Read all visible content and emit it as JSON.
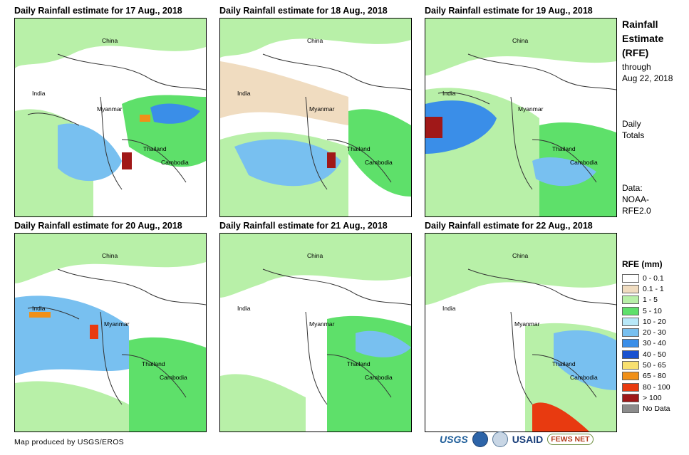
{
  "panels": [
    {
      "title": "Daily Rainfall estimate for 17 Aug., 2018"
    },
    {
      "title": "Daily Rainfall estimate for 18 Aug., 2018"
    },
    {
      "title": "Daily Rainfall estimate for 19 Aug., 2018"
    },
    {
      "title": "Daily Rainfall estimate for 20 Aug., 2018"
    },
    {
      "title": "Daily Rainfall estimate for 21 Aug., 2018"
    },
    {
      "title": "Daily Rainfall estimate for 22 Aug., 2018"
    }
  ],
  "places": {
    "china": "China",
    "india": "India",
    "myanmar": "Myanmar",
    "thailand": "Thailand",
    "cambodia": "Cambodia"
  },
  "side": {
    "title1": "Rainfall",
    "title2": "Estimate",
    "title3": "(RFE)",
    "through": "through",
    "date": "Aug 22, 2018",
    "daily": "Daily",
    "totals": "Totals",
    "data_label": "Data:",
    "data_source1": "NOAA-",
    "data_source2": "RFE2.0"
  },
  "legend": {
    "title": "RFE (mm)",
    "items": [
      {
        "label": "0 - 0.1",
        "color": "#ffffff"
      },
      {
        "label": "0.1 - 1",
        "color": "#f0dcc0"
      },
      {
        "label": "1 - 5",
        "color": "#b8f0a8"
      },
      {
        "label": "5 - 10",
        "color": "#5ee06a"
      },
      {
        "label": "10 - 20",
        "color": "#b8e8f8"
      },
      {
        "label": "20 - 30",
        "color": "#78c0f0"
      },
      {
        "label": "30 - 40",
        "color": "#3a8ee8"
      },
      {
        "label": "40 - 50",
        "color": "#1a52d0"
      },
      {
        "label": "50 - 65",
        "color": "#f8e070"
      },
      {
        "label": "65 - 80",
        "color": "#f09018"
      },
      {
        "label": "80 - 100",
        "color": "#e83a10"
      },
      {
        "label": "> 100",
        "color": "#a01818"
      },
      {
        "label": "No Data",
        "color": "#8c8c8c"
      }
    ]
  },
  "footer": {
    "credit": "Map produced by USGS/EROS"
  },
  "logos": {
    "usgs": "USGS",
    "usaid": "USAID",
    "fews": "FEWS NET"
  }
}
